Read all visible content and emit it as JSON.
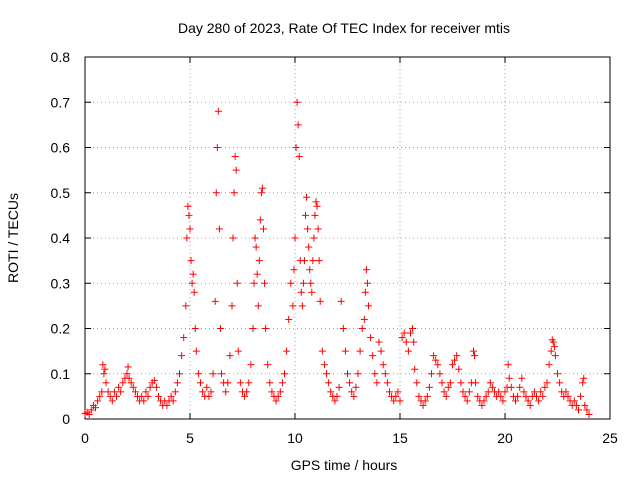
{
  "chart_data": {
    "type": "scatter",
    "title": "Day 280 of 2023, Rate Of TEC Index for receiver mtis",
    "xlabel": "GPS time / hours",
    "ylabel": "ROTI / TECUs",
    "xlim": [
      0,
      25
    ],
    "ylim": [
      0,
      0.8
    ],
    "xticks": [
      0,
      5,
      10,
      15,
      20,
      25
    ],
    "yticks": [
      0,
      0.1,
      0.2,
      0.3,
      0.4,
      0.5,
      0.6,
      0.7,
      0.8
    ],
    "xtick_labels": [
      "0",
      "5",
      "10",
      "15",
      "20",
      "25"
    ],
    "ytick_labels": [
      "0",
      "0.1",
      "0.2",
      "0.3",
      "0.4",
      "0.5",
      "0.6",
      "0.7",
      "0.8"
    ],
    "grid": true,
    "marker": "+",
    "series_color": "#ff0000",
    "points": [
      [
        0.0,
        0.012
      ],
      [
        0.1,
        0.015
      ],
      [
        0.2,
        0.01
      ],
      [
        0.3,
        0.02
      ],
      [
        0.4,
        0.03
      ],
      [
        0.5,
        0.025
      ],
      [
        0.6,
        0.04
      ],
      [
        0.7,
        0.05
      ],
      [
        0.8,
        0.06
      ],
      [
        0.85,
        0.12
      ],
      [
        0.9,
        0.1
      ],
      [
        0.95,
        0.11
      ],
      [
        1.0,
        0.08
      ],
      [
        1.1,
        0.06
      ],
      [
        1.2,
        0.05
      ],
      [
        1.3,
        0.04
      ],
      [
        1.4,
        0.06
      ],
      [
        1.5,
        0.05
      ],
      [
        1.6,
        0.07
      ],
      [
        1.7,
        0.06
      ],
      [
        1.8,
        0.08
      ],
      [
        1.9,
        0.09
      ],
      [
        2.0,
        0.1
      ],
      [
        2.05,
        0.115
      ],
      [
        2.1,
        0.09
      ],
      [
        2.2,
        0.08
      ],
      [
        2.3,
        0.07
      ],
      [
        2.4,
        0.06
      ],
      [
        2.5,
        0.05
      ],
      [
        2.6,
        0.04
      ],
      [
        2.7,
        0.05
      ],
      [
        2.8,
        0.04
      ],
      [
        2.9,
        0.06
      ],
      [
        3.0,
        0.05
      ],
      [
        3.1,
        0.07
      ],
      [
        3.2,
        0.08
      ],
      [
        3.3,
        0.085
      ],
      [
        3.4,
        0.07
      ],
      [
        3.5,
        0.05
      ],
      [
        3.6,
        0.04
      ],
      [
        3.7,
        0.03
      ],
      [
        3.8,
        0.04
      ],
      [
        3.9,
        0.03
      ],
      [
        4.0,
        0.04
      ],
      [
        4.1,
        0.05
      ],
      [
        4.2,
        0.04
      ],
      [
        4.3,
        0.06
      ],
      [
        4.4,
        0.08
      ],
      [
        4.5,
        0.1
      ],
      [
        4.6,
        0.14
      ],
      [
        4.7,
        0.18
      ],
      [
        4.8,
        0.25
      ],
      [
        4.85,
        0.4
      ],
      [
        4.9,
        0.47
      ],
      [
        4.95,
        0.45
      ],
      [
        5.0,
        0.42
      ],
      [
        5.05,
        0.35
      ],
      [
        5.1,
        0.3
      ],
      [
        5.15,
        0.32
      ],
      [
        5.2,
        0.28
      ],
      [
        5.25,
        0.2
      ],
      [
        5.3,
        0.15
      ],
      [
        5.4,
        0.1
      ],
      [
        5.5,
        0.08
      ],
      [
        5.6,
        0.06
      ],
      [
        5.7,
        0.05
      ],
      [
        5.8,
        0.07
      ],
      [
        5.9,
        0.05
      ],
      [
        6.0,
        0.06
      ],
      [
        6.1,
        0.1
      ],
      [
        6.2,
        0.26
      ],
      [
        6.25,
        0.5
      ],
      [
        6.3,
        0.6
      ],
      [
        6.35,
        0.68
      ],
      [
        6.4,
        0.42
      ],
      [
        6.45,
        0.2
      ],
      [
        6.5,
        0.1
      ],
      [
        6.6,
        0.08
      ],
      [
        6.7,
        0.06
      ],
      [
        6.8,
        0.08
      ],
      [
        6.9,
        0.14
      ],
      [
        7.0,
        0.25
      ],
      [
        7.05,
        0.4
      ],
      [
        7.1,
        0.5
      ],
      [
        7.15,
        0.58
      ],
      [
        7.2,
        0.55
      ],
      [
        7.25,
        0.3
      ],
      [
        7.3,
        0.15
      ],
      [
        7.4,
        0.08
      ],
      [
        7.5,
        0.06
      ],
      [
        7.6,
        0.05
      ],
      [
        7.7,
        0.06
      ],
      [
        7.8,
        0.08
      ],
      [
        7.9,
        0.12
      ],
      [
        8.0,
        0.2
      ],
      [
        8.05,
        0.3
      ],
      [
        8.1,
        0.4
      ],
      [
        8.15,
        0.38
      ],
      [
        8.2,
        0.32
      ],
      [
        8.25,
        0.25
      ],
      [
        8.3,
        0.35
      ],
      [
        8.35,
        0.44
      ],
      [
        8.4,
        0.5
      ],
      [
        8.45,
        0.51
      ],
      [
        8.5,
        0.42
      ],
      [
        8.55,
        0.3
      ],
      [
        8.6,
        0.2
      ],
      [
        8.7,
        0.12
      ],
      [
        8.8,
        0.08
      ],
      [
        8.9,
        0.06
      ],
      [
        9.0,
        0.05
      ],
      [
        9.1,
        0.04
      ],
      [
        9.2,
        0.05
      ],
      [
        9.3,
        0.06
      ],
      [
        9.4,
        0.08
      ],
      [
        9.5,
        0.1
      ],
      [
        9.6,
        0.15
      ],
      [
        9.7,
        0.22
      ],
      [
        9.8,
        0.3
      ],
      [
        9.9,
        0.25
      ],
      [
        9.95,
        0.33
      ],
      [
        10.0,
        0.4
      ],
      [
        10.05,
        0.6
      ],
      [
        10.1,
        0.7
      ],
      [
        10.15,
        0.65
      ],
      [
        10.2,
        0.58
      ],
      [
        10.25,
        0.35
      ],
      [
        10.3,
        0.28
      ],
      [
        10.35,
        0.25
      ],
      [
        10.4,
        0.3
      ],
      [
        10.45,
        0.35
      ],
      [
        10.5,
        0.45
      ],
      [
        10.55,
        0.49
      ],
      [
        10.6,
        0.42
      ],
      [
        10.65,
        0.38
      ],
      [
        10.7,
        0.33
      ],
      [
        10.75,
        0.3
      ],
      [
        10.8,
        0.28
      ],
      [
        10.85,
        0.35
      ],
      [
        10.9,
        0.4
      ],
      [
        10.95,
        0.45
      ],
      [
        11.0,
        0.48
      ],
      [
        11.05,
        0.47
      ],
      [
        11.1,
        0.42
      ],
      [
        11.15,
        0.35
      ],
      [
        11.2,
        0.26
      ],
      [
        11.3,
        0.15
      ],
      [
        11.4,
        0.12
      ],
      [
        11.5,
        0.1
      ],
      [
        11.6,
        0.08
      ],
      [
        11.7,
        0.06
      ],
      [
        11.8,
        0.05
      ],
      [
        11.9,
        0.04
      ],
      [
        12.0,
        0.05
      ],
      [
        12.1,
        0.07
      ],
      [
        12.2,
        0.26
      ],
      [
        12.3,
        0.2
      ],
      [
        12.4,
        0.15
      ],
      [
        12.5,
        0.1
      ],
      [
        12.6,
        0.08
      ],
      [
        12.7,
        0.06
      ],
      [
        12.8,
        0.05
      ],
      [
        12.9,
        0.07
      ],
      [
        13.0,
        0.1
      ],
      [
        13.1,
        0.15
      ],
      [
        13.2,
        0.2
      ],
      [
        13.3,
        0.22
      ],
      [
        13.35,
        0.28
      ],
      [
        13.4,
        0.33
      ],
      [
        13.45,
        0.3
      ],
      [
        13.5,
        0.25
      ],
      [
        13.6,
        0.18
      ],
      [
        13.7,
        0.14
      ],
      [
        13.8,
        0.1
      ],
      [
        13.9,
        0.08
      ],
      [
        14.0,
        0.17
      ],
      [
        14.1,
        0.15
      ],
      [
        14.2,
        0.12
      ],
      [
        14.3,
        0.1
      ],
      [
        14.4,
        0.08
      ],
      [
        14.5,
        0.06
      ],
      [
        14.6,
        0.05
      ],
      [
        14.7,
        0.04
      ],
      [
        14.8,
        0.05
      ],
      [
        14.9,
        0.06
      ],
      [
        15.0,
        0.04
      ],
      [
        15.1,
        0.18
      ],
      [
        15.2,
        0.19
      ],
      [
        15.3,
        0.17
      ],
      [
        15.4,
        0.15
      ],
      [
        15.5,
        0.19
      ],
      [
        15.6,
        0.2
      ],
      [
        15.65,
        0.17
      ],
      [
        15.7,
        0.11
      ],
      [
        15.8,
        0.08
      ],
      [
        15.9,
        0.05
      ],
      [
        16.0,
        0.04
      ],
      [
        16.1,
        0.03
      ],
      [
        16.2,
        0.04
      ],
      [
        16.3,
        0.05
      ],
      [
        16.4,
        0.07
      ],
      [
        16.5,
        0.1
      ],
      [
        16.6,
        0.14
      ],
      [
        16.7,
        0.13
      ],
      [
        16.8,
        0.12
      ],
      [
        16.9,
        0.1
      ],
      [
        17.0,
        0.08
      ],
      [
        17.1,
        0.06
      ],
      [
        17.2,
        0.05
      ],
      [
        17.3,
        0.07
      ],
      [
        17.4,
        0.08
      ],
      [
        17.5,
        0.12
      ],
      [
        17.6,
        0.13
      ],
      [
        17.7,
        0.14
      ],
      [
        17.8,
        0.11
      ],
      [
        17.9,
        0.08
      ],
      [
        18.0,
        0.06
      ],
      [
        18.1,
        0.05
      ],
      [
        18.2,
        0.04
      ],
      [
        18.3,
        0.06
      ],
      [
        18.4,
        0.08
      ],
      [
        18.5,
        0.15
      ],
      [
        18.55,
        0.14
      ],
      [
        18.6,
        0.08
      ],
      [
        18.7,
        0.05
      ],
      [
        18.8,
        0.04
      ],
      [
        18.9,
        0.03
      ],
      [
        19.0,
        0.04
      ],
      [
        19.1,
        0.05
      ],
      [
        19.2,
        0.06
      ],
      [
        19.3,
        0.08
      ],
      [
        19.4,
        0.07
      ],
      [
        19.5,
        0.06
      ],
      [
        19.6,
        0.05
      ],
      [
        19.7,
        0.06
      ],
      [
        19.8,
        0.05
      ],
      [
        19.9,
        0.04
      ],
      [
        20.0,
        0.06
      ],
      [
        20.1,
        0.07
      ],
      [
        20.15,
        0.12
      ],
      [
        20.2,
        0.09
      ],
      [
        20.3,
        0.07
      ],
      [
        20.4,
        0.05
      ],
      [
        20.5,
        0.04
      ],
      [
        20.6,
        0.05
      ],
      [
        20.7,
        0.07
      ],
      [
        20.8,
        0.09
      ],
      [
        20.9,
        0.06
      ],
      [
        21.0,
        0.05
      ],
      [
        21.1,
        0.04
      ],
      [
        21.2,
        0.03
      ],
      [
        21.3,
        0.05
      ],
      [
        21.4,
        0.06
      ],
      [
        21.5,
        0.05
      ],
      [
        21.6,
        0.04
      ],
      [
        21.7,
        0.06
      ],
      [
        21.8,
        0.05
      ],
      [
        21.9,
        0.07
      ],
      [
        22.0,
        0.08
      ],
      [
        22.1,
        0.12
      ],
      [
        22.2,
        0.15
      ],
      [
        22.25,
        0.175
      ],
      [
        22.3,
        0.17
      ],
      [
        22.35,
        0.16
      ],
      [
        22.4,
        0.14
      ],
      [
        22.5,
        0.1
      ],
      [
        22.6,
        0.08
      ],
      [
        22.7,
        0.06
      ],
      [
        22.8,
        0.05
      ],
      [
        22.9,
        0.06
      ],
      [
        23.0,
        0.05
      ],
      [
        23.1,
        0.04
      ],
      [
        23.2,
        0.03
      ],
      [
        23.3,
        0.04
      ],
      [
        23.4,
        0.03
      ],
      [
        23.5,
        0.02
      ],
      [
        23.6,
        0.05
      ],
      [
        23.7,
        0.08
      ],
      [
        23.75,
        0.09
      ],
      [
        23.8,
        0.03
      ],
      [
        23.9,
        0.02
      ],
      [
        24.0,
        0.01
      ]
    ]
  }
}
